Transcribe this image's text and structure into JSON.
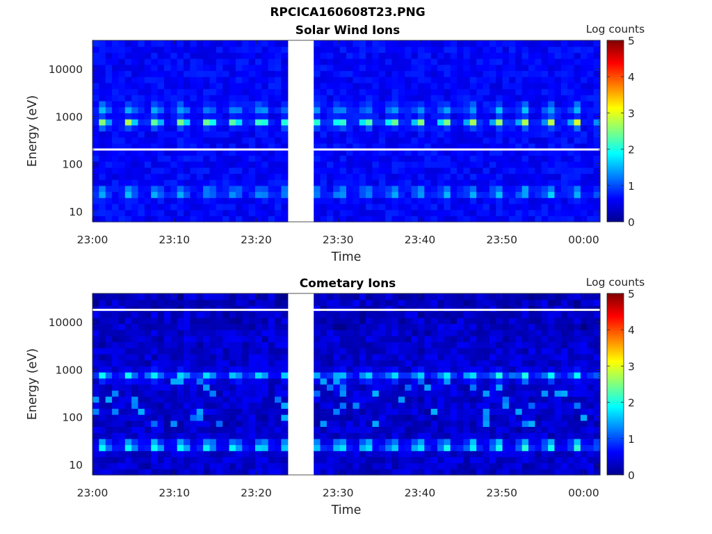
{
  "figure_title": "RPCICA160608T23.PNG",
  "chart_data": [
    {
      "type": "heatmap",
      "title": "Solar Wind Ions",
      "xlabel": "Time",
      "ylabel": "Energy (eV)",
      "y_scale": "log",
      "ylim": [
        6,
        40000
      ],
      "xlim": [
        "23:00",
        "00:02"
      ],
      "x_ticks": [
        "23:00",
        "23:10",
        "23:20",
        "23:30",
        "23:40",
        "23:50",
        "00:00"
      ],
      "y_ticks": [
        10,
        100,
        1000,
        10000
      ],
      "y_tick_labels": [
        "10",
        "100",
        "1000",
        "10000"
      ],
      "data_gap": [
        "23:24",
        "23:27"
      ],
      "colorbar": {
        "label": "Log counts",
        "min": 0,
        "max": 5,
        "ticks": [
          "0",
          "1",
          "2",
          "3",
          "4",
          "5"
        ],
        "colormap": "jet"
      },
      "features": [
        {
          "energy_eV": 750,
          "description": "periodic solar wind proton beam",
          "log_counts": 3.0
        },
        {
          "energy_eV": 1500,
          "description": "solar wind alpha beam",
          "log_counts": 1.7
        },
        {
          "energy_eV": 25,
          "description": "low-energy periodic band",
          "log_counts": 1.6
        }
      ],
      "masked_energy_eV": 200,
      "grid": false
    },
    {
      "type": "heatmap",
      "title": "Cometary Ions",
      "xlabel": "Time",
      "ylabel": "Energy (eV)",
      "y_scale": "log",
      "ylim": [
        6,
        40000
      ],
      "xlim": [
        "23:00",
        "00:02"
      ],
      "x_ticks": [
        "23:00",
        "23:10",
        "23:20",
        "23:30",
        "23:40",
        "23:50",
        "00:00"
      ],
      "y_ticks": [
        10,
        100,
        1000,
        10000
      ],
      "y_tick_labels": [
        "10",
        "100",
        "1000",
        "10000"
      ],
      "data_gap": [
        "23:24",
        "23:27"
      ],
      "colorbar": {
        "label": "Log counts",
        "min": 0,
        "max": 5,
        "ticks": [
          "0",
          "1",
          "2",
          "3",
          "4",
          "5"
        ],
        "colormap": "jet"
      },
      "features": [
        {
          "energy_eV": 750,
          "description": "periodic beam",
          "log_counts": 2.0
        },
        {
          "energy_eV": 25,
          "description": "cometary ion band",
          "log_counts": 2.5
        }
      ],
      "masked_energy_eV": 18000,
      "grid": false
    }
  ]
}
